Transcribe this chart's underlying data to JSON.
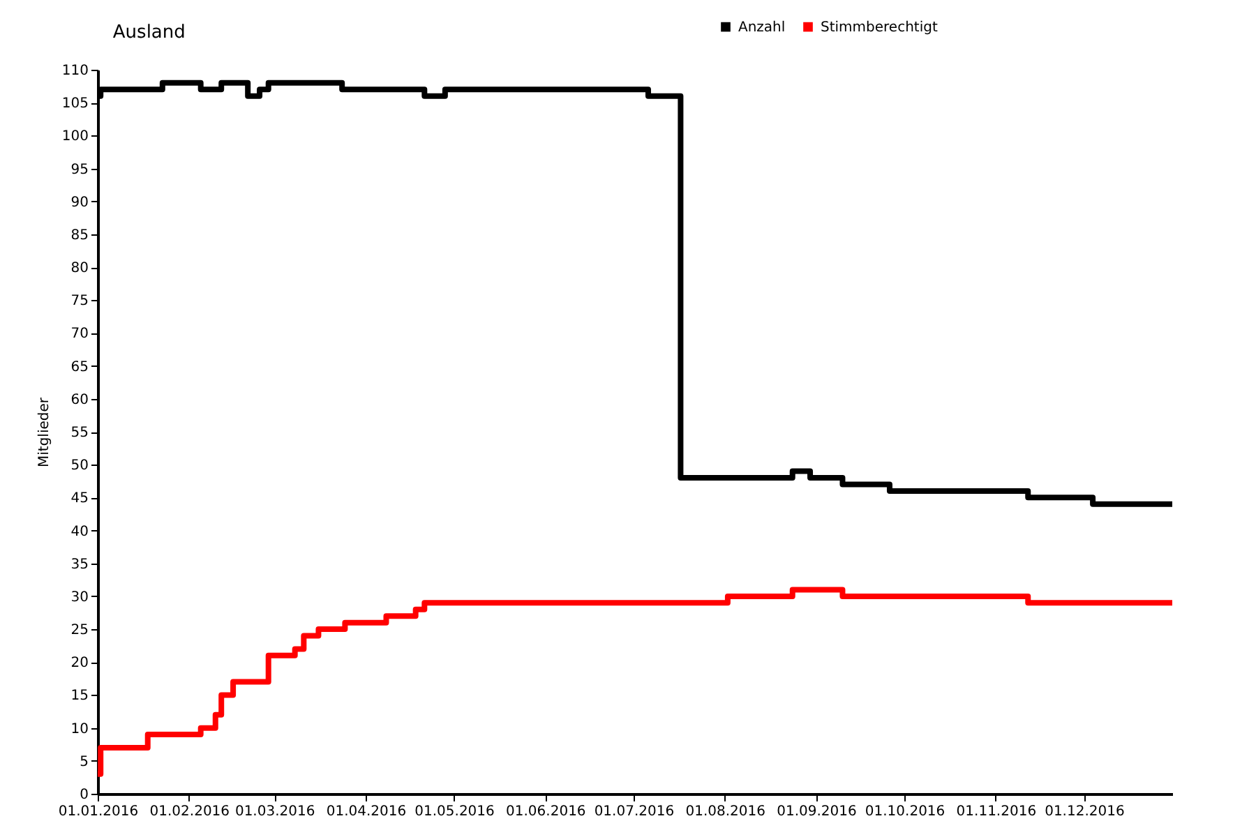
{
  "chart_data": {
    "type": "step",
    "title": "Ausland",
    "ylabel": "Mitglieder",
    "x": [
      "2016-01-01",
      "2016-01-02",
      "2016-01-23",
      "2016-02-05",
      "2016-02-12",
      "2016-02-21",
      "2016-02-25",
      "2016-02-28",
      "2016-03-24",
      "2016-04-21",
      "2016-04-28",
      "2016-07-06",
      "2016-07-17",
      "2016-08-24",
      "2016-08-30",
      "2016-09-10",
      "2016-09-26",
      "2016-11-12",
      "2016-12-04",
      "2016-12-31"
    ],
    "series": [
      {
        "name": "Anzahl",
        "color": "#000000",
        "values": [
          106,
          107,
          108,
          107,
          108,
          106,
          107,
          108,
          107,
          106,
          107,
          106,
          48,
          49,
          48,
          47,
          46,
          45,
          44,
          44
        ]
      },
      {
        "name": "Stimmberechtigt",
        "color": "#ff0000",
        "x": [
          "2016-01-01",
          "2016-01-02",
          "2016-01-18",
          "2016-02-05",
          "2016-02-10",
          "2016-02-12",
          "2016-02-16",
          "2016-02-28",
          "2016-03-08",
          "2016-03-11",
          "2016-03-16",
          "2016-03-25",
          "2016-04-08",
          "2016-04-18",
          "2016-04-21",
          "2016-08-02",
          "2016-08-24",
          "2016-09-10",
          "2016-11-12",
          "2016-12-31"
        ],
        "values": [
          3,
          7,
          9,
          10,
          12,
          15,
          17,
          21,
          22,
          24,
          25,
          26,
          27,
          28,
          29,
          30,
          31,
          30,
          29,
          29
        ]
      }
    ],
    "xlim": [
      "2016-01-01",
      "2016-12-31"
    ],
    "xticks": [
      {
        "value": "2016-01-01",
        "label": "01.01.2016"
      },
      {
        "value": "2016-02-01",
        "label": "01.02.2016"
      },
      {
        "value": "2016-03-01",
        "label": "01.03.2016"
      },
      {
        "value": "2016-04-01",
        "label": "01.04.2016"
      },
      {
        "value": "2016-05-01",
        "label": "01.05.2016"
      },
      {
        "value": "2016-06-01",
        "label": "01.06.2016"
      },
      {
        "value": "2016-07-01",
        "label": "01.07.2016"
      },
      {
        "value": "2016-08-01",
        "label": "01.08.2016"
      },
      {
        "value": "2016-09-01",
        "label": "01.09.2016"
      },
      {
        "value": "2016-10-01",
        "label": "01.10.2016"
      },
      {
        "value": "2016-11-01",
        "label": "01.11.2016"
      },
      {
        "value": "2016-12-01",
        "label": "01.12.2016"
      }
    ],
    "ylim": [
      0,
      110
    ],
    "yticks": [
      0,
      5,
      10,
      15,
      20,
      25,
      30,
      35,
      40,
      45,
      50,
      55,
      60,
      65,
      70,
      75,
      80,
      85,
      90,
      95,
      100,
      105,
      110
    ],
    "grid": false,
    "legend": "top",
    "marker": "none",
    "line_style": "solid"
  }
}
